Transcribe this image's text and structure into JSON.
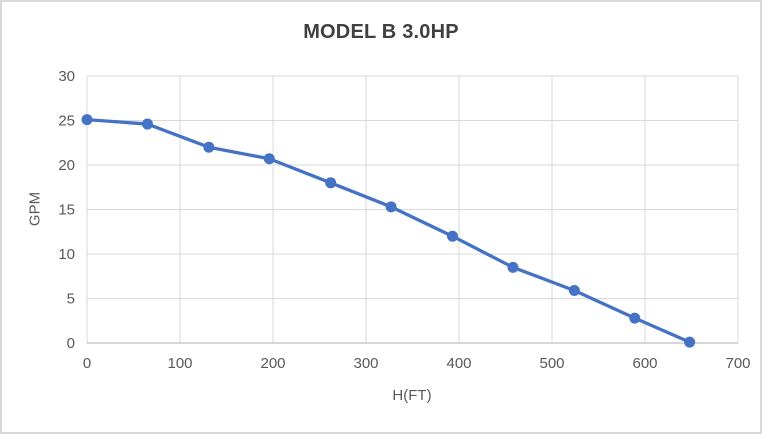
{
  "chart_data": {
    "type": "line",
    "title": "MODEL B 3.0HP",
    "xlabel": "H(FT)",
    "ylabel": "GPM",
    "x": [
      0,
      65,
      131,
      196,
      262,
      327,
      393,
      458,
      524,
      589,
      648
    ],
    "y": [
      25.1,
      24.6,
      22.0,
      20.7,
      18.0,
      15.3,
      12.0,
      8.5,
      5.9,
      2.8,
      0.1
    ],
    "xlim": [
      0,
      700
    ],
    "ylim": [
      0,
      30
    ],
    "x_ticks": [
      0,
      100,
      200,
      300,
      400,
      500,
      600,
      700
    ],
    "y_ticks": [
      0,
      5,
      10,
      15,
      20,
      25,
      30
    ],
    "grid": true,
    "legend": "none",
    "marker": "circle",
    "colors": {
      "series": "#4472C4",
      "gridline": "#D9D9D9",
      "axis_line": "#BFBFBF",
      "tick_text": "#595959",
      "title_text": "#404040",
      "axis_title_text": "#595959",
      "background": "#FFFFFF",
      "chart_border": "#D9D9D9"
    }
  }
}
